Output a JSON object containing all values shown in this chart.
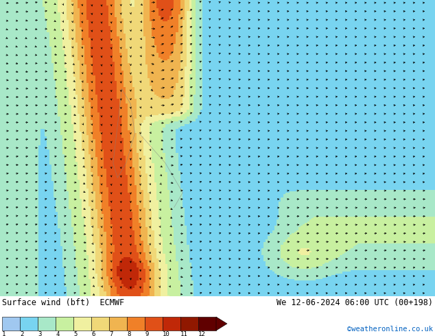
{
  "title_left": "Surface wind (bft)  ECMWF",
  "title_right": "We 12-06-2024 06:00 UTC (00+198)",
  "credit": "©weatheronline.co.uk",
  "colorbar_values": [
    1,
    2,
    3,
    4,
    5,
    6,
    7,
    8,
    9,
    10,
    11,
    12
  ],
  "colorbar_colors": [
    "#a0c8f0",
    "#78d4f0",
    "#a8e8c8",
    "#c8f0a0",
    "#f0f0a0",
    "#f0d878",
    "#f0b450",
    "#f08028",
    "#e05018",
    "#c02808",
    "#901800",
    "#600000"
  ],
  "bg_color": "#ffffff",
  "dominant_bg": "#a0c8e8",
  "fig_width": 6.34,
  "fig_height": 4.9,
  "dpi": 100
}
